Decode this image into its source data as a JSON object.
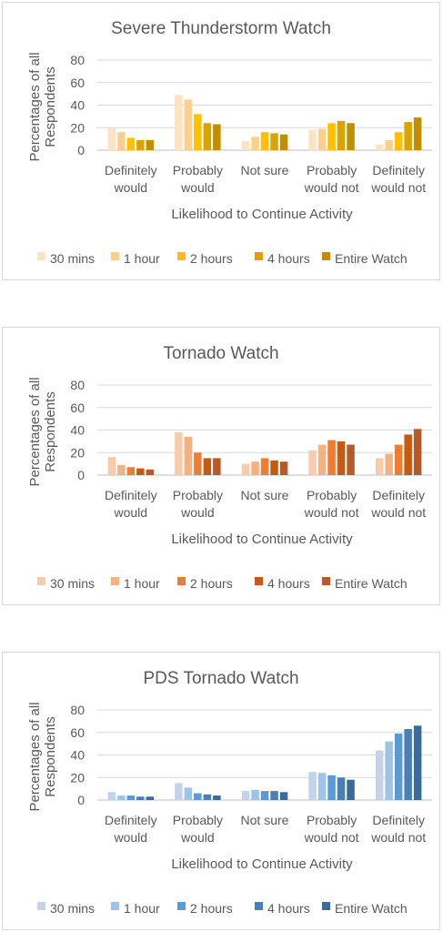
{
  "chart_data": [
    {
      "type": "bar",
      "title": "Severe Thunderstorm Watch",
      "xlabel": "Likelihood to Continue Activity",
      "ylabel": "Percentages of all Respondents",
      "ylim": [
        0,
        80
      ],
      "yticks": [
        "0",
        "20",
        "40",
        "60",
        "80"
      ],
      "grid": true,
      "legend_position": "bottom",
      "categories": [
        [
          "Definitely",
          "would"
        ],
        [
          "Probably",
          "would"
        ],
        [
          "Not sure"
        ],
        [
          "Probably",
          "would not"
        ],
        [
          "Definitely",
          "would not"
        ]
      ],
      "series": [
        {
          "name": "30 mins",
          "color": "#fbe3c3",
          "values": [
            20,
            49,
            8,
            18,
            5
          ]
        },
        {
          "name": "1 hour",
          "color": "#f9d18d",
          "values": [
            16,
            45,
            12,
            19,
            9
          ]
        },
        {
          "name": "2 hours",
          "color": "#ffc000",
          "values": [
            11,
            32,
            16,
            24,
            16
          ]
        },
        {
          "name": "4 hours",
          "color": "#d9a400",
          "values": [
            9,
            24,
            15,
            26,
            25
          ]
        },
        {
          "name": "Entire Watch",
          "color": "#bf8f00",
          "values": [
            9,
            23,
            14,
            24,
            29
          ]
        }
      ]
    },
    {
      "type": "bar",
      "title": "Tornado Watch",
      "xlabel": "Likelihood to Continue Activity",
      "ylabel": "Percentages of all Respondents",
      "ylim": [
        0,
        80
      ],
      "yticks": [
        "0",
        "20",
        "40",
        "60",
        "80"
      ],
      "grid": true,
      "legend_position": "bottom",
      "categories": [
        [
          "Definitely",
          "would"
        ],
        [
          "Probably",
          "would"
        ],
        [
          "Not sure"
        ],
        [
          "Probably",
          "would not"
        ],
        [
          "Definitely",
          "would not"
        ]
      ],
      "series": [
        {
          "name": "30 mins",
          "color": "#f8cbad",
          "values": [
            16,
            38,
            10,
            22,
            15
          ]
        },
        {
          "name": "1 hour",
          "color": "#f4b183",
          "values": [
            9,
            34,
            12,
            27,
            19
          ]
        },
        {
          "name": "2 hours",
          "color": "#ed7d31",
          "values": [
            7,
            20,
            15,
            31,
            27
          ]
        },
        {
          "name": "4 hours",
          "color": "#c55a11",
          "values": [
            6,
            15,
            13,
            30,
            36
          ]
        },
        {
          "name": "Entire Watch",
          "color": "#b55a28",
          "values": [
            5,
            15,
            12,
            27,
            41
          ]
        }
      ]
    },
    {
      "type": "bar",
      "title": "PDS Tornado Watch",
      "xlabel": "Likelihood to Continue Activity",
      "ylabel": "Percentages of all Respondents",
      "ylim": [
        0,
        80
      ],
      "yticks": [
        "0",
        "20",
        "40",
        "60",
        "80"
      ],
      "grid": true,
      "legend_position": "bottom",
      "categories": [
        [
          "Definitely",
          "would"
        ],
        [
          "Probably",
          "would"
        ],
        [
          "Not sure"
        ],
        [
          "Probably",
          "would not"
        ],
        [
          "Definitely",
          "would not"
        ]
      ],
      "series": [
        {
          "name": "30 mins",
          "color": "#c5d3ea",
          "values": [
            7,
            15,
            8,
            25,
            44
          ]
        },
        {
          "name": "1 hour",
          "color": "#9dc3e6",
          "values": [
            4,
            11,
            9,
            24,
            52
          ]
        },
        {
          "name": "2 hours",
          "color": "#5b9bd5",
          "values": [
            4,
            6,
            8,
            22,
            59
          ]
        },
        {
          "name": "4 hours",
          "color": "#4a7fb5",
          "values": [
            3,
            5,
            8,
            20,
            63
          ]
        },
        {
          "name": "Entire Watch",
          "color": "#3a6a9a",
          "values": [
            3,
            4,
            7,
            18,
            66
          ]
        }
      ]
    }
  ]
}
